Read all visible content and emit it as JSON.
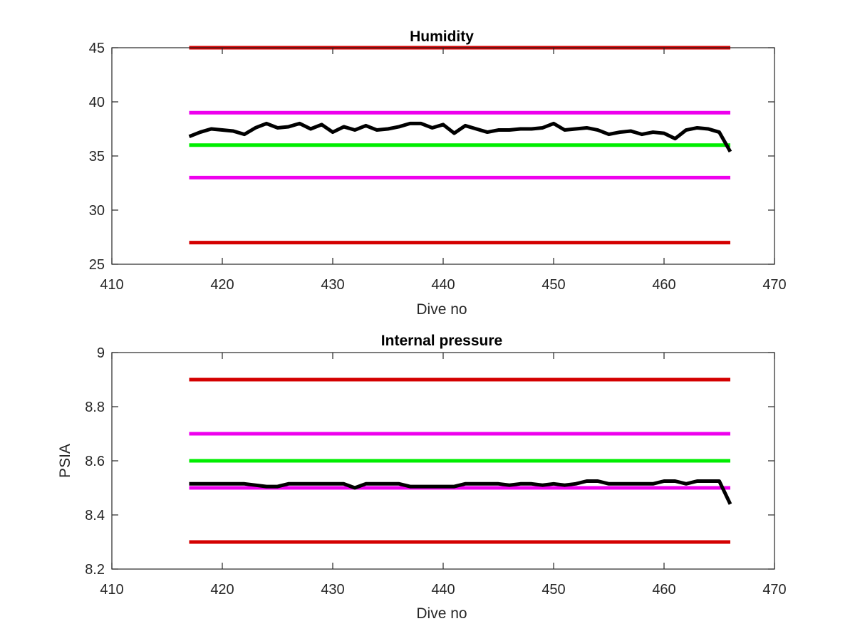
{
  "chart_data": [
    {
      "type": "line",
      "title": "Humidity",
      "xlabel": "Dive no",
      "ylabel": "",
      "xlim": [
        410,
        470
      ],
      "ylim": [
        25,
        45
      ],
      "xticks": [
        "410",
        "420",
        "430",
        "440",
        "450",
        "460",
        "470"
      ],
      "yticks": [
        "25",
        "30",
        "35",
        "40",
        "45"
      ],
      "grid": false,
      "series": [
        {
          "color": "#d40000",
          "x": [
            417,
            466
          ],
          "y": [
            45,
            45
          ]
        },
        {
          "color": "#ee00ee",
          "x": [
            417,
            466
          ],
          "y": [
            39,
            39
          ]
        },
        {
          "color": "#00ee00",
          "x": [
            417,
            466
          ],
          "y": [
            36,
            36
          ]
        },
        {
          "color": "#ee00ee",
          "x": [
            417,
            466
          ],
          "y": [
            33,
            33
          ]
        },
        {
          "color": "#d40000",
          "x": [
            417,
            466
          ],
          "y": [
            27,
            27
          ]
        },
        {
          "color": "#000000",
          "x": [
            417,
            418,
            419,
            420,
            421,
            422,
            423,
            424,
            425,
            426,
            427,
            428,
            429,
            430,
            431,
            432,
            433,
            434,
            435,
            436,
            437,
            438,
            439,
            440,
            441,
            442,
            443,
            444,
            445,
            446,
            447,
            448,
            449,
            450,
            451,
            452,
            453,
            454,
            455,
            456,
            457,
            458,
            459,
            460,
            461,
            462,
            463,
            464,
            465,
            466
          ],
          "y": [
            36.8,
            37.2,
            37.5,
            37.4,
            37.3,
            37.0,
            37.6,
            38.0,
            37.6,
            37.7,
            38.0,
            37.5,
            37.9,
            37.2,
            37.7,
            37.4,
            37.8,
            37.4,
            37.5,
            37.7,
            38.0,
            38.0,
            37.6,
            37.9,
            37.1,
            37.8,
            37.5,
            37.2,
            37.4,
            37.4,
            37.5,
            37.5,
            37.6,
            38.0,
            37.4,
            37.5,
            37.6,
            37.4,
            37.0,
            37.2,
            37.3,
            37.0,
            37.2,
            37.1,
            36.6,
            37.4,
            37.6,
            37.5,
            37.2,
            35.4
          ]
        }
      ]
    },
    {
      "type": "line",
      "title": "Internal pressure",
      "xlabel": "Dive no",
      "ylabel": "PSIA",
      "xlim": [
        410,
        470
      ],
      "ylim": [
        8.2,
        9
      ],
      "xticks": [
        "410",
        "420",
        "430",
        "440",
        "450",
        "460",
        "470"
      ],
      "yticks": [
        "8.2",
        "8.4",
        "8.6",
        "8.8",
        "9"
      ],
      "grid": false,
      "series": [
        {
          "color": "#d40000",
          "x": [
            417,
            466
          ],
          "y": [
            8.9,
            8.9
          ]
        },
        {
          "color": "#ee00ee",
          "x": [
            417,
            466
          ],
          "y": [
            8.7,
            8.7
          ]
        },
        {
          "color": "#00ee00",
          "x": [
            417,
            466
          ],
          "y": [
            8.6,
            8.6
          ]
        },
        {
          "color": "#ee00ee",
          "x": [
            417,
            466
          ],
          "y": [
            8.5,
            8.5
          ]
        },
        {
          "color": "#d40000",
          "x": [
            417,
            466
          ],
          "y": [
            8.3,
            8.3
          ]
        },
        {
          "color": "#000000",
          "x": [
            417,
            418,
            419,
            420,
            421,
            422,
            423,
            424,
            425,
            426,
            427,
            428,
            429,
            430,
            431,
            432,
            433,
            434,
            435,
            436,
            437,
            438,
            439,
            440,
            441,
            442,
            443,
            444,
            445,
            446,
            447,
            448,
            449,
            450,
            451,
            452,
            453,
            454,
            455,
            456,
            457,
            458,
            459,
            460,
            461,
            462,
            463,
            464,
            465,
            466
          ],
          "y": [
            8.515,
            8.515,
            8.515,
            8.515,
            8.515,
            8.515,
            8.51,
            8.505,
            8.505,
            8.515,
            8.515,
            8.515,
            8.515,
            8.515,
            8.515,
            8.5,
            8.515,
            8.515,
            8.515,
            8.515,
            8.505,
            8.505,
            8.505,
            8.505,
            8.505,
            8.515,
            8.515,
            8.515,
            8.515,
            8.51,
            8.515,
            8.515,
            8.51,
            8.515,
            8.51,
            8.515,
            8.525,
            8.525,
            8.515,
            8.515,
            8.515,
            8.515,
            8.515,
            8.525,
            8.525,
            8.515,
            8.525,
            8.525,
            8.525,
            8.44
          ]
        }
      ]
    }
  ]
}
